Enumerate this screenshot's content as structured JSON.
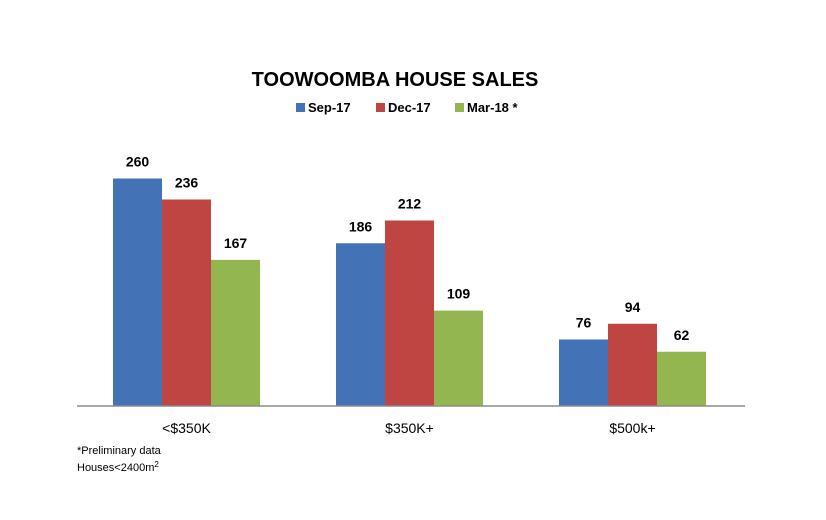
{
  "chart_data": {
    "type": "bar",
    "title": "TOOWOOMBA HOUSE SALES",
    "categories": [
      "<$350K",
      "$350K+",
      "$500k+"
    ],
    "series": [
      {
        "name": "Sep-17",
        "values": [
          260,
          186,
          76
        ],
        "color": "#4472b6"
      },
      {
        "name": "Dec-17",
        "values": [
          236,
          212,
          94
        ],
        "color": "#be4542"
      },
      {
        "name": "Mar-18 *",
        "values": [
          167,
          109,
          62
        ],
        "color": "#94b650"
      }
    ],
    "ylim": [
      0,
      270
    ],
    "grid": false,
    "legend_position": "top",
    "show_data_labels": true,
    "footnotes": [
      "*Preliminary data",
      "Houses<2400m"
    ],
    "footnote_superscript": "2"
  }
}
